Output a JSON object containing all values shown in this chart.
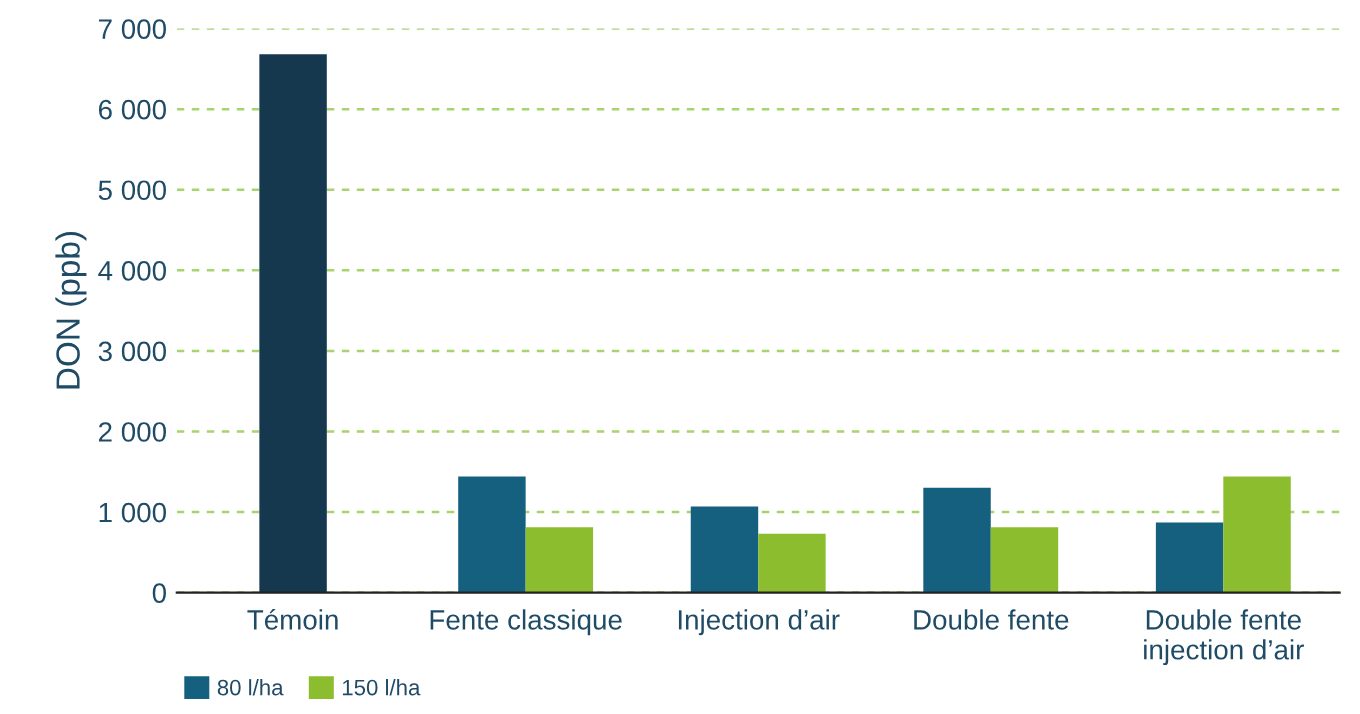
{
  "chart_data": {
    "type": "bar",
    "ylabel": "DON (ppb)",
    "categories": [
      "Témoin",
      "Fente classique",
      "Injection d’air",
      "Double fente",
      "Double fente\ninjection d’air"
    ],
    "series": [
      {
        "name": "80 l/ha",
        "color": "#15607f",
        "colors": [
          "#16384f",
          "#15607f",
          "#15607f",
          "#15607f",
          "#15607f"
        ],
        "values": [
          6680,
          1440,
          1070,
          1300,
          870
        ]
      },
      {
        "name": "150 l/ha",
        "color": "#8cbd2f",
        "values": [
          null,
          810,
          730,
          810,
          1440
        ]
      }
    ],
    "ylim": [
      0,
      7000
    ],
    "yticks": [
      {
        "value": 0,
        "label": "0"
      },
      {
        "value": 1000,
        "label": "1 000"
      },
      {
        "value": 2000,
        "label": "2 000"
      },
      {
        "value": 3000,
        "label": "3 000"
      },
      {
        "value": 4000,
        "label": "4 000"
      },
      {
        "value": 5000,
        "label": "5 000"
      },
      {
        "value": 6000,
        "label": "6 000"
      },
      {
        "value": 7000,
        "label": "7 000"
      }
    ],
    "grid": "y",
    "legend": "bottom left"
  }
}
